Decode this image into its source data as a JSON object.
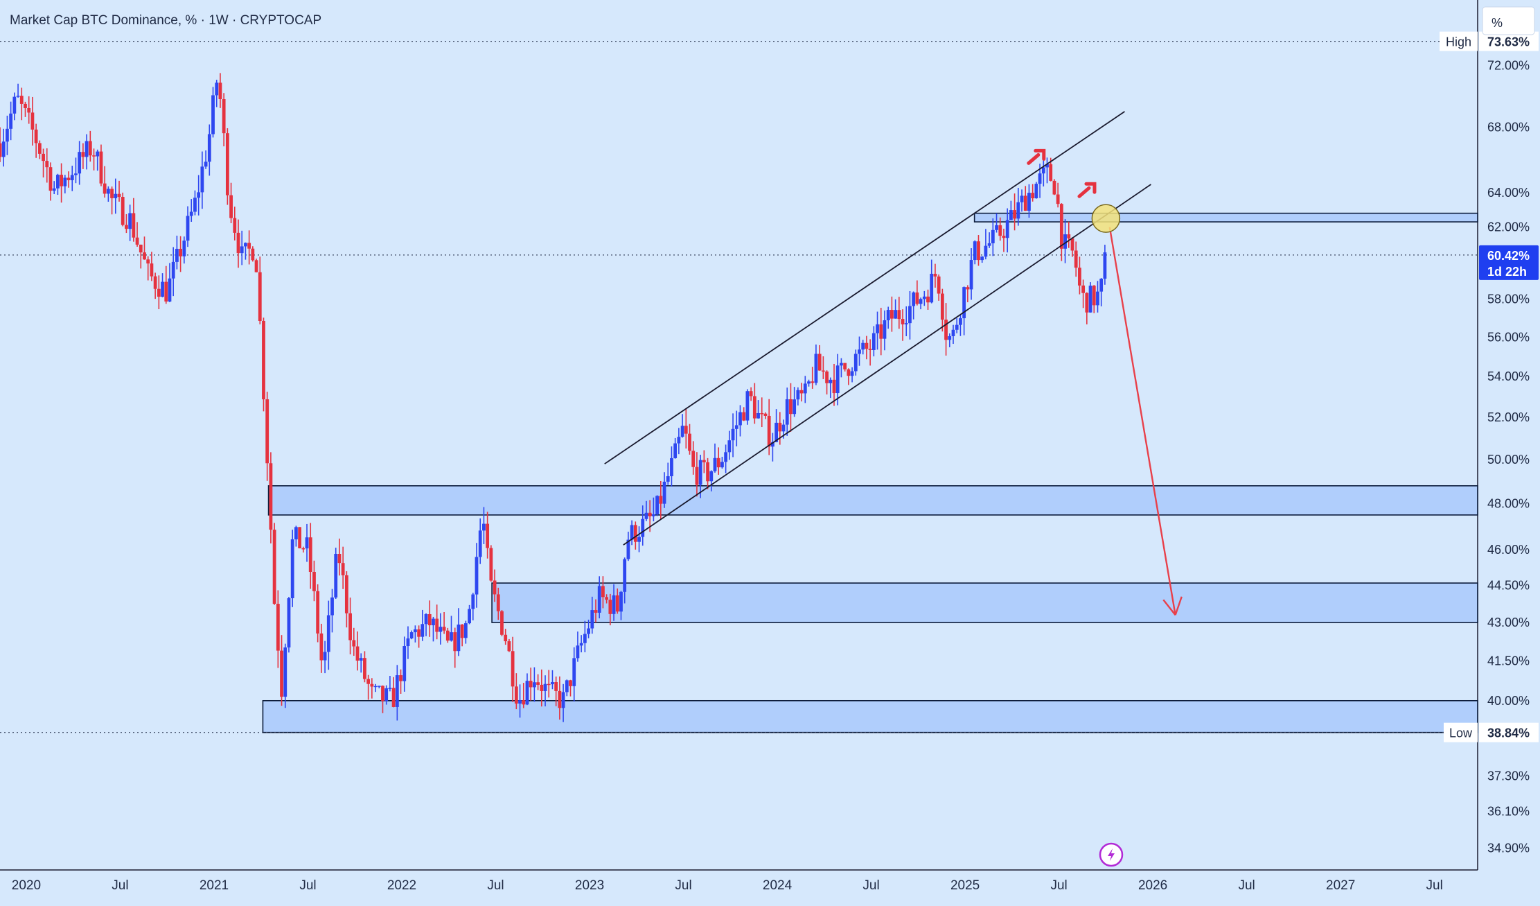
{
  "header": {
    "title": "Market Cap BTC Dominance, % · 1W · CRYPTOCAP"
  },
  "axis_unit_button": {
    "label": "%"
  },
  "colors": {
    "background": "#d6e8fc",
    "up": "#2e47f0",
    "down": "#e5323f",
    "zone_fill": "#a9c9fb",
    "zone_stroke": "#0b1b3a",
    "channel": "#1a1a2e",
    "arrow": "#e8404a",
    "highlight_circle": "#f3e27a",
    "price_label_bg": "#1f3ff0"
  },
  "markers": {
    "high": {
      "label": "High",
      "value": "73.63%",
      "y": 73.63
    },
    "low": {
      "label": "Low",
      "value": "38.84%",
      "y": 38.84
    },
    "current": {
      "value": "60.42%",
      "countdown": "1d 22h",
      "y": 60.42
    }
  },
  "lightning_icon": "lightning-icon",
  "chart_data": {
    "type": "candlestick",
    "title": "Market Cap BTC Dominance, % · 1W · CRYPTOCAP",
    "interval": "1W",
    "y_scale": "log",
    "y_ticks": [
      "72.00%",
      "68.00%",
      "64.00%",
      "62.00%",
      "58.00%",
      "56.00%",
      "54.00%",
      "52.00%",
      "50.00%",
      "48.00%",
      "46.00%",
      "44.50%",
      "43.00%",
      "41.50%",
      "40.00%",
      "37.30%",
      "36.10%",
      "34.90%"
    ],
    "y_tick_values": [
      72,
      68,
      64,
      62,
      58,
      56,
      54,
      52,
      50,
      48,
      46,
      44.5,
      43,
      41.5,
      40,
      37.3,
      36.1,
      34.9
    ],
    "x_ticks": [
      {
        "label": "2020",
        "year": 2020.0
      },
      {
        "label": "Jul",
        "year": 2020.5
      },
      {
        "label": "2021",
        "year": 2021.0
      },
      {
        "label": "Jul",
        "year": 2021.5
      },
      {
        "label": "2022",
        "year": 2022.0
      },
      {
        "label": "Jul",
        "year": 2022.5
      },
      {
        "label": "2023",
        "year": 2023.0
      },
      {
        "label": "Jul",
        "year": 2023.5
      },
      {
        "label": "2024",
        "year": 2024.0
      },
      {
        "label": "Jul",
        "year": 2024.5
      },
      {
        "label": "2025",
        "year": 2025.0
      },
      {
        "label": "Jul",
        "year": 2025.5
      },
      {
        "label": "2026",
        "year": 2026.0
      },
      {
        "label": "Jul",
        "year": 2026.5
      },
      {
        "label": "2027",
        "year": 2027.0
      },
      {
        "label": "Jul",
        "year": 2027.5
      }
    ],
    "x_range": [
      2019.86,
      2027.73
    ],
    "y_range": [
      34.2,
      76.5
    ],
    "path": [
      [
        2019.86,
        67.0
      ],
      [
        2019.95,
        69.8
      ],
      [
        2020.05,
        67.3
      ],
      [
        2020.15,
        64.2
      ],
      [
        2020.25,
        65.4
      ],
      [
        2020.35,
        66.8
      ],
      [
        2020.45,
        63.6
      ],
      [
        2020.55,
        62.5
      ],
      [
        2020.65,
        59.3
      ],
      [
        2020.75,
        58.4
      ],
      [
        2020.8,
        60.0
      ],
      [
        2020.9,
        63.4
      ],
      [
        2020.97,
        67.1
      ],
      [
        2021.02,
        71.5
      ],
      [
        2021.08,
        63.5
      ],
      [
        2021.15,
        60.2
      ],
      [
        2021.22,
        61.0
      ],
      [
        2021.26,
        54.0
      ],
      [
        2021.32,
        44.0
      ],
      [
        2021.36,
        40.5
      ],
      [
        2021.42,
        46.5
      ],
      [
        2021.5,
        46.0
      ],
      [
        2021.58,
        41.0
      ],
      [
        2021.66,
        46.0
      ],
      [
        2021.74,
        42.0
      ],
      [
        2021.84,
        40.2
      ],
      [
        2021.95,
        40.0
      ],
      [
        2022.05,
        42.5
      ],
      [
        2022.15,
        43.0
      ],
      [
        2022.25,
        42.0
      ],
      [
        2022.35,
        43.0
      ],
      [
        2022.43,
        47.5
      ],
      [
        2022.47,
        44.5
      ],
      [
        2022.55,
        42.5
      ],
      [
        2022.62,
        40.0
      ],
      [
        2022.7,
        41.0
      ],
      [
        2022.78,
        40.3
      ],
      [
        2022.86,
        40.0
      ],
      [
        2022.95,
        42.0
      ],
      [
        2023.05,
        44.0
      ],
      [
        2023.15,
        43.6
      ],
      [
        2023.2,
        46.5
      ],
      [
        2023.28,
        47.0
      ],
      [
        2023.35,
        47.5
      ],
      [
        2023.45,
        50.0
      ],
      [
        2023.5,
        51.5
      ],
      [
        2023.55,
        49.5
      ],
      [
        2023.62,
        49.3
      ],
      [
        2023.7,
        50.0
      ],
      [
        2023.8,
        52.0
      ],
      [
        2023.85,
        53.0
      ],
      [
        2023.9,
        52.0
      ],
      [
        2023.97,
        51.0
      ],
      [
        2024.05,
        52.5
      ],
      [
        2024.15,
        53.0
      ],
      [
        2024.2,
        54.5
      ],
      [
        2024.3,
        53.8
      ],
      [
        2024.4,
        54.8
      ],
      [
        2024.5,
        55.5
      ],
      [
        2024.6,
        57.0
      ],
      [
        2024.7,
        57.5
      ],
      [
        2024.8,
        58.5
      ],
      [
        2024.85,
        59.5
      ],
      [
        2024.9,
        56.2
      ],
      [
        2024.93,
        55.8
      ],
      [
        2024.97,
        57.5
      ],
      [
        2025.05,
        60.5
      ],
      [
        2025.15,
        61.2
      ],
      [
        2025.25,
        62.5
      ],
      [
        2025.32,
        63.7
      ],
      [
        2025.38,
        64.5
      ],
      [
        2025.44,
        65.2
      ],
      [
        2025.48,
        64.5
      ],
      [
        2025.52,
        61.0
      ],
      [
        2025.58,
        60.4
      ],
      [
        2025.62,
        58.0
      ],
      [
        2025.66,
        58.0
      ],
      [
        2025.72,
        58.2
      ],
      [
        2025.75,
        60.4
      ]
    ],
    "zones": [
      {
        "x0": 2021.29,
        "x1": 2027.73,
        "y_low": 47.5,
        "y_high": 48.8
      },
      {
        "x0": 2022.48,
        "x1": 2027.73,
        "y_low": 43.0,
        "y_high": 44.6
      },
      {
        "x0": 2021.26,
        "x1": 2027.73,
        "y_low": 38.84,
        "y_high": 40.0
      },
      {
        "x0": 2025.05,
        "x1": 2027.73,
        "y_low": 62.3,
        "y_high": 62.8
      }
    ],
    "channel_lines": [
      {
        "x0": 2023.08,
        "y0": 49.8,
        "x1": 2025.85,
        "y1": 69.0
      },
      {
        "x0": 2023.18,
        "y0": 46.2,
        "x1": 2025.99,
        "y1": 64.5
      }
    ],
    "arrow": {
      "x0": 2025.77,
      "y0": 62.0,
      "x1": 2026.12,
      "y1": 43.3
    },
    "highlight": {
      "x": 2025.75,
      "y": 62.5
    },
    "signal_marks": [
      {
        "x": 2025.39,
        "y": 66.2
      },
      {
        "x": 2025.66,
        "y": 64.2
      }
    ]
  }
}
